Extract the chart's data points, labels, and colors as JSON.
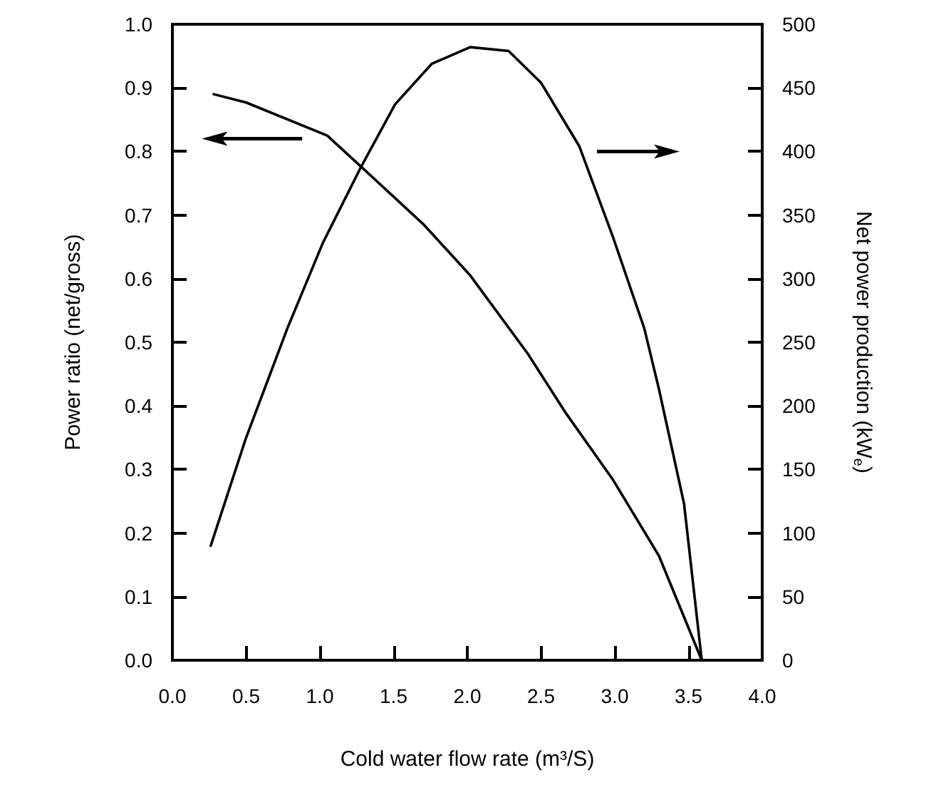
{
  "chart_data": {
    "type": "line",
    "xlabel": "Cold water flow rate (m³/S)",
    "ylabel": "Power ratio (net/gross)",
    "y2label": "Net power production (kW$_{e}$)",
    "xlim": [
      0,
      4
    ],
    "xticks": [
      {
        "value": 0,
        "label": "0.0"
      },
      0.5,
      {
        "value": 1,
        "label": "1.0"
      },
      1.5,
      {
        "value": 2,
        "label": "2.0"
      },
      2.5,
      {
        "value": 3,
        "label": "3.0"
      },
      3.5,
      {
        "value": 4,
        "label": "4.0"
      }
    ],
    "ylim": [
      0,
      1
    ],
    "yticks": [
      {
        "value": 0,
        "label": "0.0"
      },
      0.1,
      0.2,
      0.3,
      0.4,
      0.5,
      0.6,
      0.7,
      0.8,
      0.9,
      {
        "value": 1,
        "label": "1.0"
      }
    ],
    "y2lim": [
      0,
      500
    ],
    "y2ticks": [
      0,
      50,
      100,
      150,
      200,
      250,
      300,
      350,
      400,
      450,
      500
    ],
    "grid": false,
    "marker": "none",
    "line_style": "solid",
    "series": [
      {
        "color": "#000000",
        "x": [
          0.28,
          0.5,
          1.05,
          1.28,
          1.7,
          2.02,
          2.41,
          2.67,
          2.99,
          3.3,
          3.59
        ],
        "values": [
          0.89,
          0.877,
          0.825,
          0.776,
          0.686,
          0.605,
          0.482,
          0.388,
          0.283,
          0.164,
          0
        ]
      },
      {
        "color": "#000000",
        "axis": "y2",
        "x": [
          0.26,
          0.5,
          0.78,
          1.02,
          1.28,
          1.51,
          1.76,
          2.02,
          2.28,
          2.5,
          2.76,
          2.99,
          3.2,
          3.3,
          3.47,
          3.59
        ],
        "values": [
          90,
          175,
          261,
          328,
          388,
          437,
          469,
          482,
          479,
          454,
          404,
          332,
          261,
          213,
          123,
          0
        ]
      }
    ]
  }
}
